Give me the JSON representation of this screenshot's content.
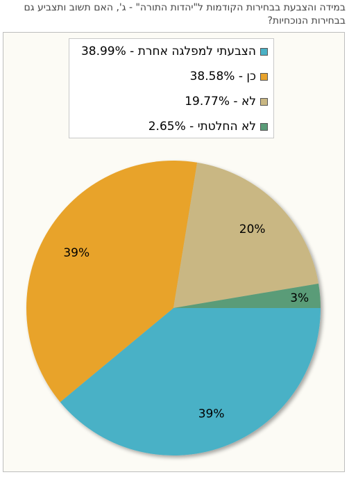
{
  "question": "במידה והצבעת בבחירות הקודמות ל\"יהדות התורה\" - ג', האם תשוב ותצביע גם בבחירות הנוכחיות?",
  "chart_data": {
    "type": "pie",
    "slices": [
      {
        "name": "הצבעתי למפלגה אחרת",
        "value": 38.99,
        "legend_text": "הצבעתי למפלגה אחרת - 38.99%",
        "label": "39%",
        "color": "#4ab1c6"
      },
      {
        "name": "כן",
        "value": 38.58,
        "legend_text": "כן - 38.58%",
        "label": "39%",
        "color": "#e8a32c"
      },
      {
        "name": "לא",
        "value": 19.77,
        "legend_text": "לא - 19.77%",
        "label": "20%",
        "color": "#c9b783"
      },
      {
        "name": "לא החלטתי",
        "value": 2.65,
        "legend_text": "לא החלטתי - 2.65%",
        "label": "3%",
        "color": "#5a9c78"
      }
    ],
    "legend_position": "top"
  }
}
